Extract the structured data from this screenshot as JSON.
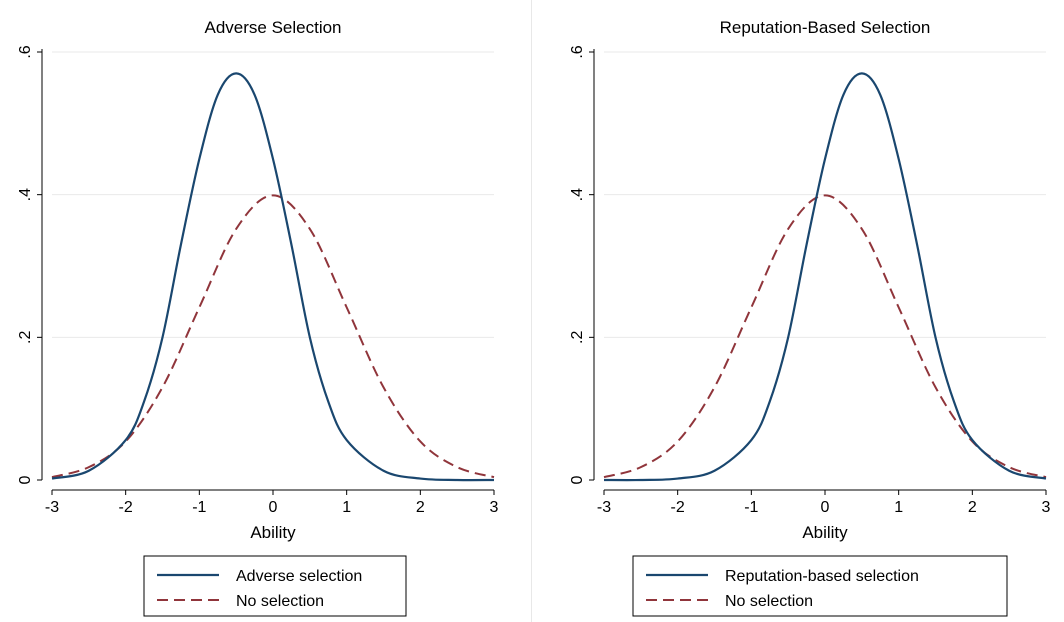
{
  "chart_data": [
    {
      "type": "line",
      "title": "Adverse Selection",
      "xlabel": "Ability",
      "ylabel": "",
      "xlim": [
        -3,
        3
      ],
      "ylim": [
        0,
        0.6
      ],
      "x_ticks": [
        -3,
        -2,
        -1,
        0,
        1,
        2,
        3
      ],
      "x_tick_labels": [
        "-3",
        "-2",
        "-1",
        "0",
        "1",
        "2",
        "3"
      ],
      "y_ticks": [
        0,
        0.2,
        0.4,
        0.6
      ],
      "y_tick_labels": [
        "0",
        ".2",
        ".4",
        ".6"
      ],
      "grid": true,
      "legend_position": "bottom",
      "series": [
        {
          "name": "Adverse selection",
          "style": "solid",
          "color": "#1a476f",
          "x": [
            -3,
            -2.5,
            -2,
            -1.75,
            -1.5,
            -1.25,
            -1,
            -0.75,
            -0.5,
            -0.25,
            0,
            0.25,
            0.5,
            0.75,
            1,
            1.5,
            2,
            2.5,
            3
          ],
          "y": [
            0.002,
            0.013,
            0.056,
            0.11,
            0.2,
            0.33,
            0.45,
            0.54,
            0.57,
            0.54,
            0.45,
            0.33,
            0.2,
            0.11,
            0.056,
            0.013,
            0.002,
            0.0,
            0.0
          ]
        },
        {
          "name": "No selection",
          "style": "dashed",
          "color": "#90353b",
          "x": [
            -3,
            -2.5,
            -2,
            -1.5,
            -1,
            -0.5,
            0,
            0.5,
            1,
            1.5,
            2,
            2.5,
            3
          ],
          "y": [
            0.004,
            0.018,
            0.054,
            0.13,
            0.242,
            0.352,
            0.399,
            0.352,
            0.242,
            0.13,
            0.054,
            0.018,
            0.004
          ]
        }
      ]
    },
    {
      "type": "line",
      "title": "Reputation-Based Selection",
      "xlabel": "Ability",
      "ylabel": "",
      "xlim": [
        -3,
        3
      ],
      "ylim": [
        0,
        0.6
      ],
      "x_ticks": [
        -3,
        -2,
        -1,
        0,
        1,
        2,
        3
      ],
      "x_tick_labels": [
        "-3",
        "-2",
        "-1",
        "0",
        "1",
        "2",
        "3"
      ],
      "y_ticks": [
        0,
        0.2,
        0.4,
        0.6
      ],
      "y_tick_labels": [
        "0",
        ".2",
        ".4",
        ".6"
      ],
      "grid": true,
      "legend_position": "bottom",
      "series": [
        {
          "name": "Reputation-based selection",
          "style": "solid",
          "color": "#1a476f",
          "x": [
            -3,
            -2.5,
            -2,
            -1.5,
            -1,
            -0.75,
            -0.5,
            -0.25,
            0,
            0.25,
            0.5,
            0.75,
            1,
            1.25,
            1.5,
            1.75,
            2,
            2.5,
            3
          ],
          "y": [
            0.0,
            0.0,
            0.002,
            0.013,
            0.056,
            0.11,
            0.2,
            0.33,
            0.45,
            0.54,
            0.57,
            0.54,
            0.45,
            0.33,
            0.2,
            0.11,
            0.056,
            0.013,
            0.002
          ]
        },
        {
          "name": "No selection",
          "style": "dashed",
          "color": "#90353b",
          "x": [
            -3,
            -2.5,
            -2,
            -1.5,
            -1,
            -0.5,
            0,
            0.5,
            1,
            1.5,
            2,
            2.5,
            3
          ],
          "y": [
            0.004,
            0.018,
            0.054,
            0.13,
            0.242,
            0.352,
            0.399,
            0.352,
            0.242,
            0.13,
            0.054,
            0.018,
            0.004
          ]
        }
      ]
    }
  ]
}
